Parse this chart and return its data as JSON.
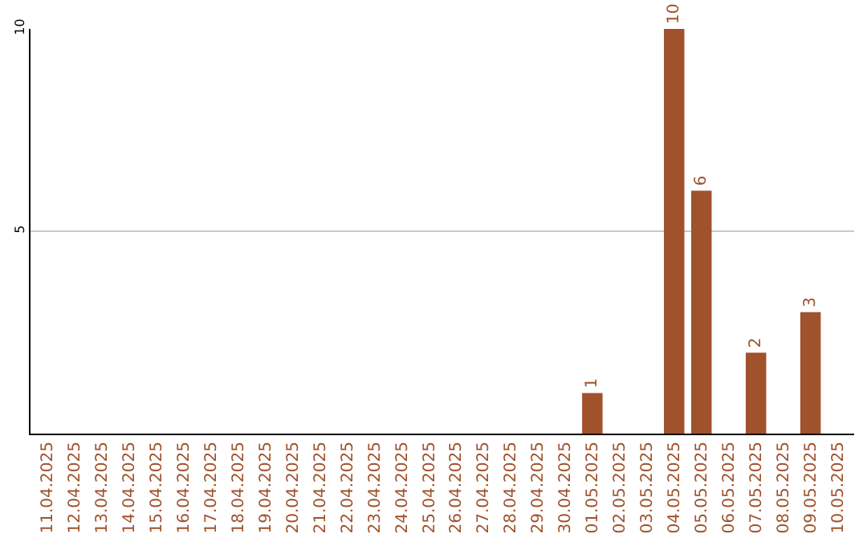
{
  "chart_data": {
    "type": "bar",
    "categories": [
      "11.04.2025",
      "12.04.2025",
      "13.04.2025",
      "14.04.2025",
      "15.04.2025",
      "16.04.2025",
      "17.04.2025",
      "18.04.2025",
      "19.04.2025",
      "20.04.2025",
      "21.04.2025",
      "22.04.2025",
      "23.04.2025",
      "24.04.2025",
      "25.04.2025",
      "26.04.2025",
      "27.04.2025",
      "28.04.2025",
      "29.04.2025",
      "30.04.2025",
      "01.05.2025",
      "02.05.2025",
      "03.05.2025",
      "04.05.2025",
      "05.05.2025",
      "06.05.2025",
      "07.05.2025",
      "08.05.2025",
      "09.05.2025",
      "10.05.2025"
    ],
    "values": [
      0,
      0,
      0,
      0,
      0,
      0,
      0,
      0,
      0,
      0,
      0,
      0,
      0,
      0,
      0,
      0,
      0,
      0,
      0,
      0,
      1,
      0,
      0,
      10,
      6,
      0,
      2,
      0,
      3,
      0
    ],
    "value_labels": [
      null,
      null,
      null,
      null,
      null,
      null,
      null,
      null,
      null,
      null,
      null,
      null,
      null,
      null,
      null,
      null,
      null,
      null,
      null,
      null,
      "1",
      null,
      null,
      "10",
      "6",
      null,
      "2",
      null,
      "3",
      null
    ],
    "color": "#a0522d",
    "ylim": [
      0,
      10
    ],
    "yticks": [
      5,
      10
    ],
    "grid": "y",
    "legend": false
  }
}
